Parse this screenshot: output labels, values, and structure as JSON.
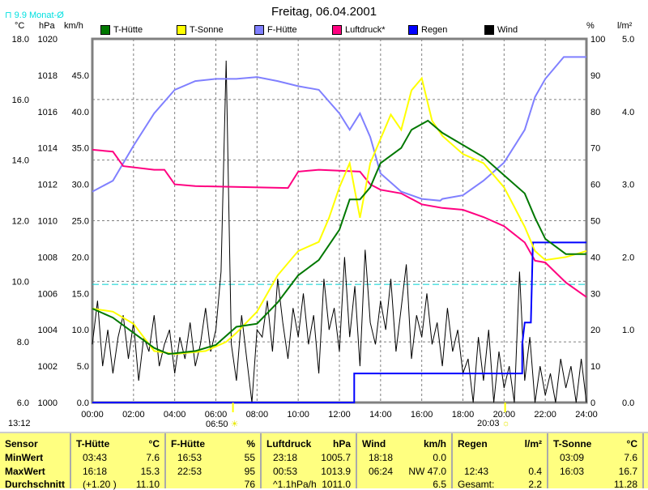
{
  "header": {
    "title": "Freitag, 06.04.2001",
    "month_avg": "9.9 Monat-Ø",
    "clock": "13:12",
    "sunrise": "06:50",
    "sunset": "20:03"
  },
  "units": {
    "c": "°C",
    "hpa": "hPa",
    "kmh": "km/h",
    "pct": "%",
    "lm2": "l/m²"
  },
  "legend": [
    {
      "label": "T-Hütte",
      "color": "#007800"
    },
    {
      "label": "T-Sonne",
      "color": "#ffff00"
    },
    {
      "label": "F-Hütte",
      "color": "#8080ff"
    },
    {
      "label": "Luftdruck*",
      "color": "#ff0080"
    },
    {
      "label": "Regen",
      "color": "#0000ff"
    },
    {
      "label": "Wind",
      "color": "#000000"
    }
  ],
  "chart_data": {
    "type": "line",
    "title": "Freitag, 06.04.2001",
    "x_range": [
      0,
      24
    ],
    "x_ticks": [
      "00:00",
      "02:00",
      "04:00",
      "06:00",
      "08:00",
      "10:00",
      "12:00",
      "14:00",
      "16:00",
      "18:00",
      "20:00",
      "22:00",
      "24:00"
    ],
    "axes": {
      "c": {
        "range": [
          6,
          18
        ],
        "ticks": [
          "18.0",
          "16.0",
          "14.0",
          "12.0",
          "10.0",
          "8.0",
          "6.0"
        ]
      },
      "hpa": {
        "range": [
          1000,
          1020
        ],
        "ticks": [
          "1020",
          "1018",
          "1016",
          "1014",
          "1012",
          "1010",
          "1008",
          "1006",
          "1004",
          "1002",
          "1000"
        ]
      },
      "kmh": {
        "range": [
          0,
          50
        ],
        "ticks": [
          "45.0",
          "40.0",
          "35.0",
          "30.0",
          "25.0",
          "20.0",
          "15.0",
          "10.0",
          "5.0",
          "0.0"
        ]
      },
      "pct": {
        "range": [
          0,
          100
        ],
        "ticks": [
          "100",
          "90",
          "80",
          "70",
          "60",
          "50",
          "40",
          "30",
          "20",
          "10",
          "0"
        ]
      },
      "lm2": {
        "range": [
          0,
          5
        ],
        "ticks": [
          "5.0",
          "4.0",
          "3.0",
          "2.0",
          "1.0",
          "0.0"
        ]
      }
    },
    "month_avg_c": 9.9,
    "series": [
      {
        "name": "Wind",
        "axis": "kmh",
        "color": "#000000",
        "step_h": 0.25,
        "values": [
          8,
          14,
          5,
          10,
          4,
          9,
          12,
          6,
          11,
          3,
          9,
          7,
          12,
          5,
          8,
          10,
          4,
          9,
          6,
          11,
          5,
          8,
          13,
          7,
          10,
          18,
          47,
          8,
          3,
          12,
          6,
          0,
          10,
          9,
          14,
          7,
          17,
          11,
          6,
          13,
          9,
          15,
          8,
          12,
          4,
          17,
          10,
          13,
          7,
          20,
          9,
          16,
          5,
          21,
          11,
          8,
          14,
          10,
          17,
          7,
          13,
          19,
          6,
          12,
          9,
          15,
          8,
          11,
          5,
          13,
          7,
          10,
          4,
          6,
          0,
          9,
          3,
          10,
          0,
          7,
          2,
          5,
          0,
          18,
          3,
          9,
          0,
          5,
          1,
          4,
          0,
          6,
          2,
          5,
          0,
          6,
          0
        ]
      },
      {
        "name": "F-Hütte",
        "axis": "pct",
        "color": "#8080ff",
        "points": [
          [
            0,
            58
          ],
          [
            1,
            61
          ],
          [
            2,
            70.6
          ],
          [
            3,
            79.5
          ],
          [
            4,
            86
          ],
          [
            5,
            88.4
          ],
          [
            6,
            89
          ],
          [
            7,
            89
          ],
          [
            8,
            89.5
          ],
          [
            9,
            88.4
          ],
          [
            10,
            87
          ],
          [
            11,
            86
          ],
          [
            12,
            79.5
          ],
          [
            12.5,
            75
          ],
          [
            13,
            79.5
          ],
          [
            13.5,
            73
          ],
          [
            14,
            63
          ],
          [
            15,
            58
          ],
          [
            16,
            56
          ],
          [
            16.9,
            55.5
          ],
          [
            17,
            56
          ],
          [
            18,
            57
          ],
          [
            19,
            61
          ],
          [
            20,
            66
          ],
          [
            21,
            75
          ],
          [
            21.5,
            84
          ],
          [
            22,
            89
          ],
          [
            22.9,
            95
          ],
          [
            24,
            95
          ]
        ]
      },
      {
        "name": "Luftdruck*",
        "axis": "hpa",
        "color": "#ff0080",
        "points": [
          [
            0,
            1013.9
          ],
          [
            1,
            1013.8
          ],
          [
            1.5,
            1013.0
          ],
          [
            3,
            1012.8
          ],
          [
            3.5,
            1012.8
          ],
          [
            4,
            1012.0
          ],
          [
            5,
            1011.9
          ],
          [
            9.5,
            1011.8
          ],
          [
            10,
            1012.7
          ],
          [
            11,
            1012.8
          ],
          [
            13,
            1012.7
          ],
          [
            13.5,
            1012.0
          ],
          [
            14,
            1011.7
          ],
          [
            15,
            1011.5
          ],
          [
            16,
            1010.9
          ],
          [
            17,
            1010.7
          ],
          [
            18,
            1010.6
          ],
          [
            19,
            1010.2
          ],
          [
            20,
            1009.7
          ],
          [
            21,
            1008.8
          ],
          [
            21.5,
            1007.8
          ],
          [
            22,
            1007.7
          ],
          [
            23,
            1006.6
          ],
          [
            24,
            1005.8
          ]
        ]
      },
      {
        "name": "Regen",
        "axis": "lm2",
        "color": "#0000ff",
        "points": [
          [
            0,
            0
          ],
          [
            12.72,
            0
          ],
          [
            12.72,
            0.4
          ],
          [
            20.88,
            0.4
          ],
          [
            20.88,
            0.8
          ],
          [
            21.0,
            1.1
          ],
          [
            21.3,
            1.1
          ],
          [
            21.4,
            2.2
          ],
          [
            24,
            2.2
          ]
        ]
      },
      {
        "name": "T-Sonne",
        "axis": "c",
        "color": "#ffff00",
        "points": [
          [
            0,
            9.1
          ],
          [
            1,
            9.0
          ],
          [
            2,
            8.6
          ],
          [
            3,
            7.7
          ],
          [
            4,
            7.6
          ],
          [
            5.5,
            7.7
          ],
          [
            6.5,
            8.0
          ],
          [
            7,
            8.3
          ],
          [
            8,
            9.0
          ],
          [
            9,
            10.2
          ],
          [
            10,
            11.0
          ],
          [
            11,
            11.3
          ],
          [
            11.5,
            12.1
          ],
          [
            12,
            13.1
          ],
          [
            12.5,
            13.9
          ],
          [
            13,
            12.1
          ],
          [
            13.5,
            13.9
          ],
          [
            14,
            14.7
          ],
          [
            14.5,
            15.5
          ],
          [
            15,
            15.0
          ],
          [
            15.5,
            16.3
          ],
          [
            16,
            16.7
          ],
          [
            16.5,
            15.3
          ],
          [
            17,
            14.8
          ],
          [
            18,
            14.2
          ],
          [
            19,
            13.9
          ],
          [
            20,
            13.1
          ],
          [
            21,
            11.8
          ],
          [
            21.5,
            11.0
          ],
          [
            22,
            10.7
          ],
          [
            23,
            10.8
          ],
          [
            24,
            11.0
          ]
        ]
      },
      {
        "name": "T-Hütte",
        "axis": "c",
        "color": "#007800",
        "points": [
          [
            0,
            9.1
          ],
          [
            1,
            8.8
          ],
          [
            2,
            8.3
          ],
          [
            3,
            7.8
          ],
          [
            3.7,
            7.6
          ],
          [
            5,
            7.7
          ],
          [
            6,
            7.9
          ],
          [
            7,
            8.5
          ],
          [
            8,
            8.6
          ],
          [
            9,
            9.3
          ],
          [
            10,
            10.2
          ],
          [
            11,
            10.7
          ],
          [
            12,
            11.7
          ],
          [
            12.5,
            12.7
          ],
          [
            13,
            12.7
          ],
          [
            13.5,
            13.1
          ],
          [
            14,
            13.9
          ],
          [
            15,
            14.4
          ],
          [
            15.5,
            15.0
          ],
          [
            16.3,
            15.3
          ],
          [
            17,
            14.9
          ],
          [
            18,
            14.5
          ],
          [
            19,
            14.1
          ],
          [
            20,
            13.5
          ],
          [
            21,
            12.9
          ],
          [
            21.5,
            12.1
          ],
          [
            22,
            11.4
          ],
          [
            23,
            10.9
          ],
          [
            24,
            10.9
          ]
        ]
      }
    ]
  },
  "table": {
    "headers": [
      [
        "Sensor",
        ""
      ],
      [
        "T-Hütte",
        "°C"
      ],
      [
        "F-Hütte",
        "%"
      ],
      [
        "Luftdruck",
        "hPa"
      ],
      [
        "Wind",
        "km/h"
      ],
      [
        "Regen",
        "l/m²"
      ],
      [
        "T-Sonne",
        "°C"
      ]
    ],
    "rows": [
      {
        "label": "MinWert",
        "cells": [
          [
            "03:43",
            "7.6"
          ],
          [
            "16:53",
            "55"
          ],
          [
            "23:18",
            "1005.7"
          ],
          [
            "18:18",
            "0.0"
          ],
          [
            "",
            ""
          ],
          [
            "03:09",
            "7.6"
          ]
        ]
      },
      {
        "label": "MaxWert",
        "cells": [
          [
            "16:18",
            "15.3"
          ],
          [
            "22:53",
            "95"
          ],
          [
            "00:53",
            "1013.9"
          ],
          [
            "06:24",
            "NW 47.0"
          ],
          [
            "12:43",
            "0.4"
          ],
          [
            "16:03",
            "16.7"
          ]
        ]
      },
      {
        "label": "Durchschnitt",
        "cells": [
          [
            "(+1.20 )",
            "11.10"
          ],
          [
            "",
            "76"
          ],
          [
            "^1.1hPa/h",
            "1011.0"
          ],
          [
            "",
            "6.5"
          ],
          [
            "Gesamt:",
            "2.2"
          ],
          [
            "",
            "11.28"
          ]
        ]
      }
    ]
  }
}
